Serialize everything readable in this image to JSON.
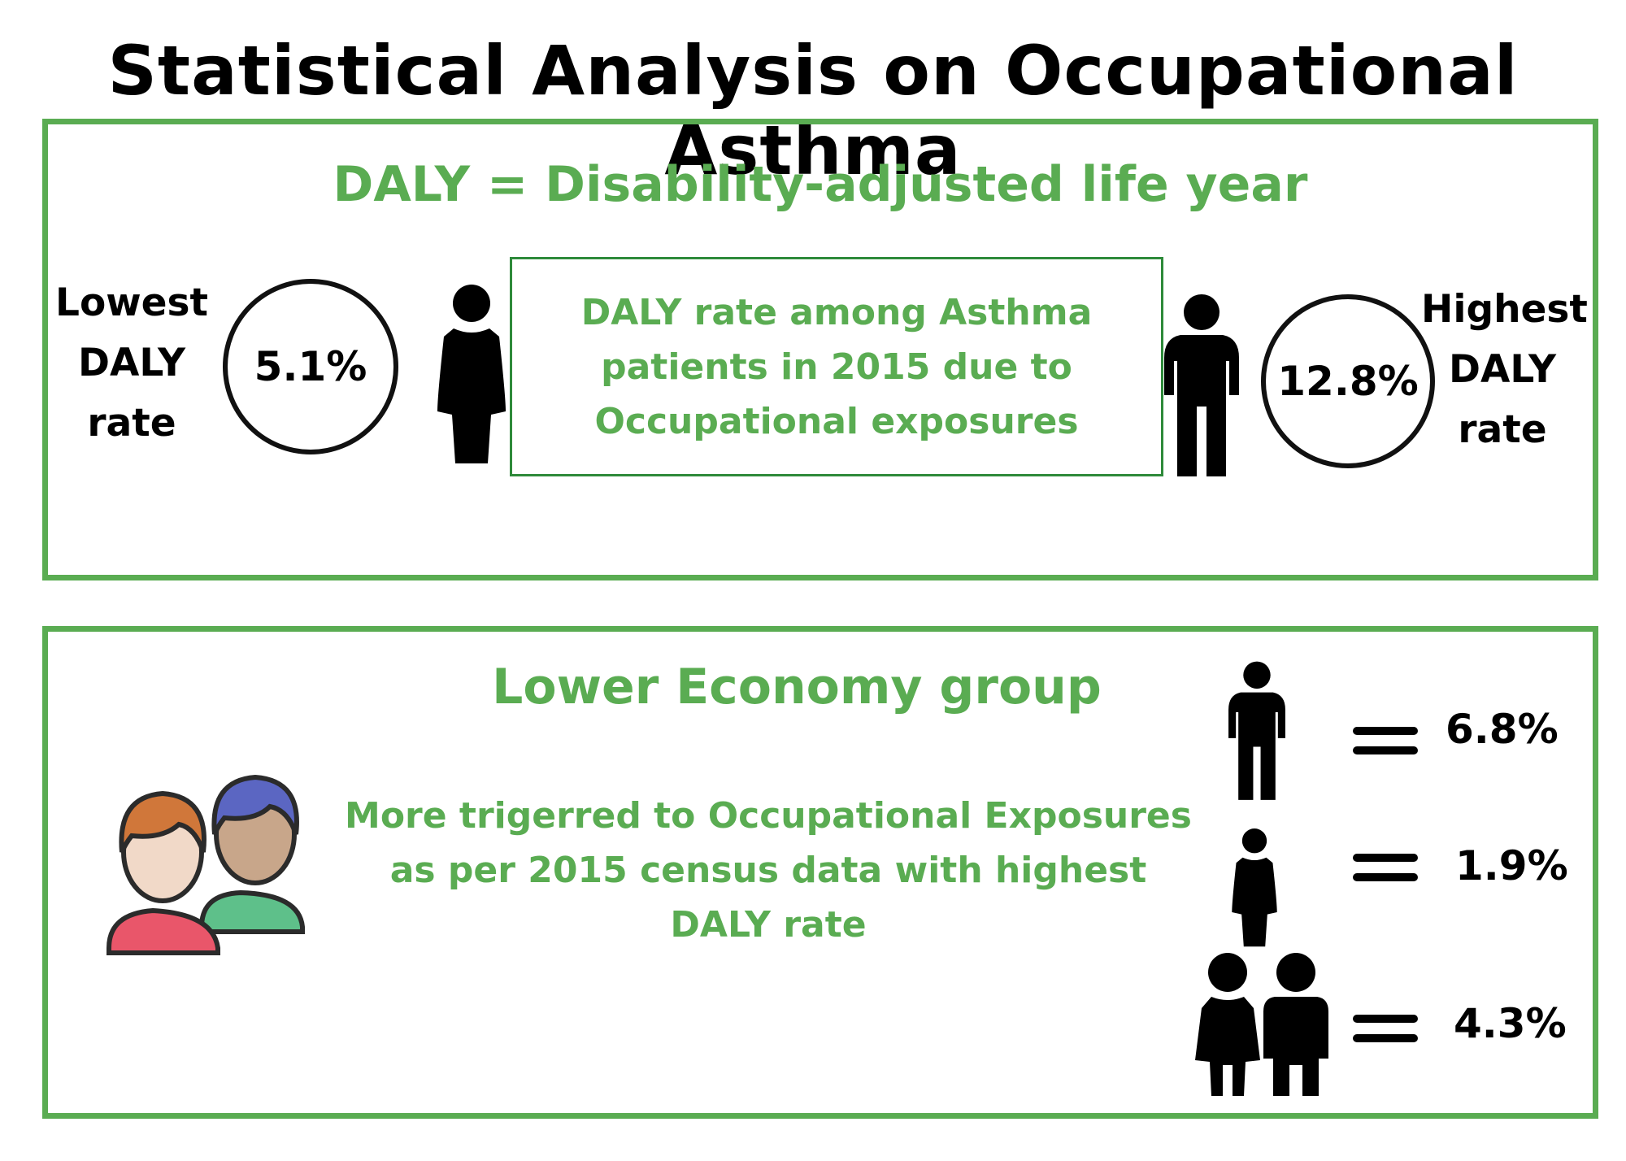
{
  "title": "Statistical Analysis on Occupational Asthma",
  "daly_panel": {
    "heading": "DALY = Disability-adjusted life year",
    "center_text": "DALY rate among Asthma patients in 2015 due to Occupational exposures",
    "lowest": {
      "label_line1": "Lowest",
      "label_line2": "DALY",
      "label_line3": "rate",
      "value": "5.1%",
      "icon": "female-person-icon"
    },
    "highest": {
      "label_line1": "Highest",
      "label_line2": "DALY",
      "label_line3": "rate",
      "value": "12.8%",
      "icon": "male-person-icon"
    }
  },
  "economy_panel": {
    "heading": "Lower Economy group",
    "description": "More trigerred to  Occupational Exposures  as per 2015 census data with highest DALY rate",
    "illustration_icon": "two-people-icon",
    "rows": [
      {
        "icon": "male-person-icon",
        "value": "6.8%"
      },
      {
        "icon": "female-person-icon",
        "value": "1.9%"
      },
      {
        "icon": "couple-icon",
        "value": "4.3%"
      }
    ]
  },
  "colors": {
    "accent": "#5aac52",
    "inner_border": "#2e8a3a",
    "text": "#000000"
  }
}
